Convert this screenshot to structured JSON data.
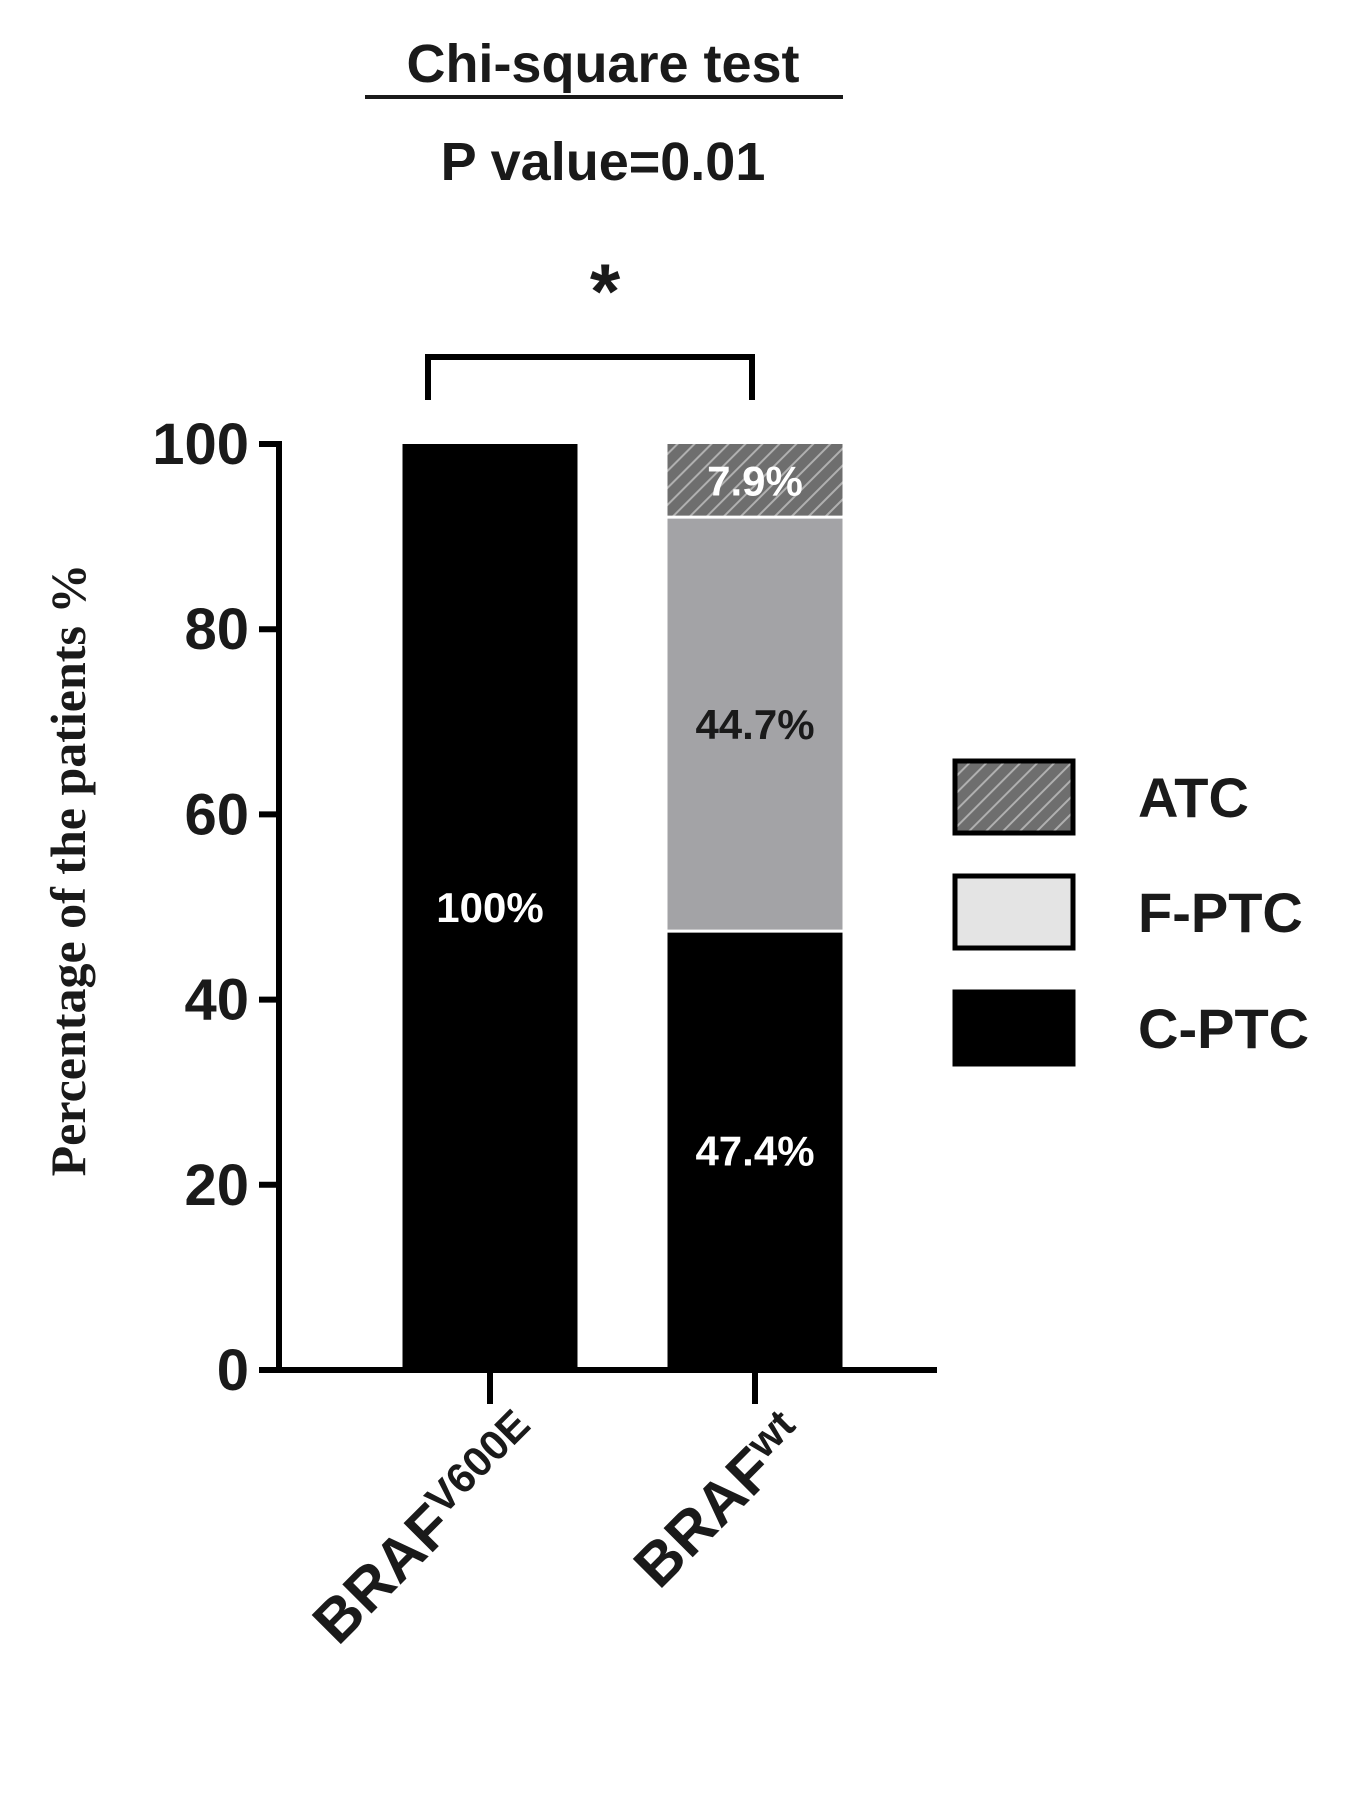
{
  "chart_data": {
    "type": "bar",
    "stacked": true,
    "title": "Chi-square test",
    "subtitle": "P value=0.01",
    "significance_marker": "*",
    "ylabel": "Percentage of the patients %",
    "xlabel": "",
    "ylim": [
      0,
      100
    ],
    "yticks": [
      0,
      20,
      40,
      60,
      80,
      100
    ],
    "ytick_labels": [
      "0",
      "20",
      "40",
      "60",
      "80",
      "100"
    ],
    "grid": false,
    "legend_position": "right",
    "categories": [
      {
        "base": "BRAF",
        "superscript": "V600E"
      },
      {
        "base": "BRAF",
        "superscript": "wt"
      }
    ],
    "series": [
      {
        "name": "C-PTC",
        "values": [
          100,
          47.4
        ],
        "labels": [
          "100%",
          "47.4%"
        ],
        "color": "#000000",
        "pattern": "solid",
        "label_color": "#ffffff"
      },
      {
        "name": "F-PTC",
        "values": [
          0,
          44.7
        ],
        "labels": [
          "",
          "44.7%"
        ],
        "color": "#a3a3a6",
        "legend_color": "#e4e4e4",
        "pattern": "solid",
        "label_color": "#1a1a1a"
      },
      {
        "name": "ATC",
        "values": [
          0,
          7.9
        ],
        "labels": [
          "",
          "7.9%"
        ],
        "color": "#6e6e6e",
        "pattern": "diagonal-hatch",
        "label_color": "#ffffff"
      }
    ],
    "legend_order": [
      "ATC",
      "F-PTC",
      "C-PTC"
    ]
  }
}
